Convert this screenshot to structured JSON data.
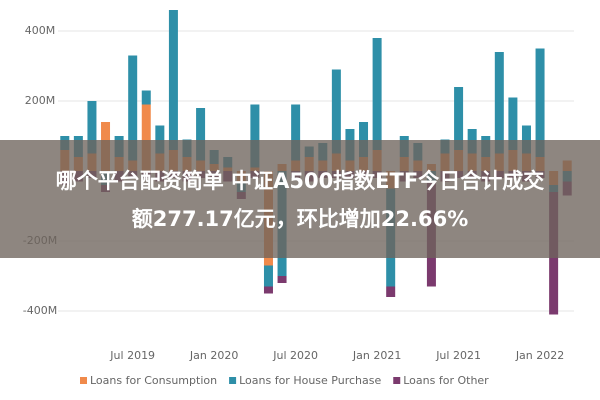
{
  "chart_data": {
    "type": "stacked_bar",
    "categories": [
      null,
      null,
      null,
      null,
      null,
      "Jul 2019",
      null,
      null,
      null,
      null,
      null,
      "Jan 2020",
      null,
      null,
      null,
      null,
      null,
      "Jul 2020",
      null,
      null,
      null,
      null,
      null,
      "Jan 2021",
      null,
      null,
      null,
      null,
      null,
      "Jul 2021",
      null,
      null,
      null,
      null,
      null,
      "Jan 2022",
      null,
      null
    ],
    "series": [
      {
        "name": "Loans for Consumption",
        "color": "#f08a4b",
        "values": [
          60,
          40,
          50,
          140,
          40,
          30,
          190,
          50,
          60,
          40,
          30,
          20,
          10,
          -30,
          10,
          -270,
          20,
          30,
          40,
          30,
          50,
          30,
          40,
          60,
          -50,
          40,
          30,
          20,
          50,
          60,
          50,
          40,
          50,
          60,
          50,
          40,
          -40,
          30
        ]
      },
      {
        "name": "Loans for House Purchase",
        "color": "#2e8fa8",
        "values": [
          40,
          60,
          150,
          -40,
          60,
          300,
          40,
          80,
          400,
          50,
          150,
          40,
          30,
          -30,
          180,
          -60,
          -300,
          160,
          30,
          50,
          240,
          90,
          100,
          320,
          -280,
          60,
          50,
          -30,
          40,
          180,
          70,
          60,
          290,
          150,
          80,
          310,
          -20,
          -30
        ]
      },
      {
        "name": "Loans for Other",
        "color": "#7b3a6e",
        "values": [
          -40,
          -30,
          -20,
          -20,
          -30,
          -20,
          -20,
          -30,
          -20,
          -30,
          -20,
          -20,
          -30,
          -20,
          -20,
          -20,
          -20,
          -20,
          -30,
          -20,
          -20,
          -20,
          -20,
          -20,
          -30,
          -30,
          -20,
          -300,
          -30,
          -20,
          -20,
          -30,
          -20,
          -20,
          -30,
          -20,
          -350,
          -40
        ]
      }
    ],
    "ylim": [
      -480,
      470
    ],
    "yticks": [
      {
        "value": 400,
        "label": "400M"
      },
      {
        "value": 200,
        "label": "200M"
      },
      {
        "value": -200,
        "label": "-200M"
      },
      {
        "value": -400,
        "label": "-400M"
      }
    ],
    "grid": true,
    "legend": "bottom",
    "overlay_text": [
      "哪个平台配资简单 中证A500指数ETF今日合计成交",
      "额277.17亿元，环比增加22.66%"
    ]
  }
}
